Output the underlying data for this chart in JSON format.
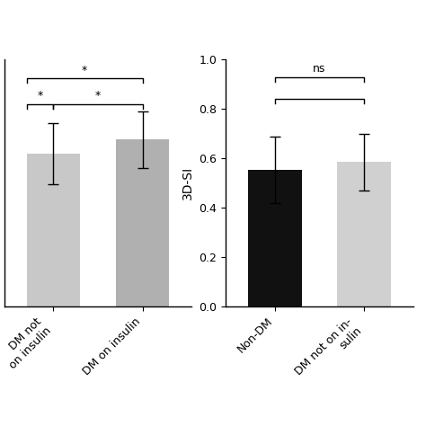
{
  "left_panel": {
    "categories": [
      "DM not\non insulin",
      "DM on insulin"
    ],
    "values": [
      0.65,
      0.71
    ],
    "errors": [
      0.13,
      0.12
    ],
    "bar_colors": [
      "#c8c8c8",
      "#b0b0b0"
    ],
    "ylabel": "",
    "ylim": [
      0,
      1.05
    ],
    "yticks": []
  },
  "right_panel": {
    "categories": [
      "Non-DM",
      "DM not on in-\nsulin"
    ],
    "values": [
      0.555,
      0.585
    ],
    "errors": [
      0.135,
      0.115
    ],
    "bar_colors": [
      "#111111",
      "#d0d0d0"
    ],
    "ylabel": "3D-SI",
    "ylim": [
      0.0,
      1.0
    ],
    "yticks": [
      0.0,
      0.2,
      0.4,
      0.6,
      0.8,
      1.0
    ]
  },
  "background_color": "#ffffff",
  "figsize": [
    4.74,
    4.74
  ],
  "dpi": 100
}
